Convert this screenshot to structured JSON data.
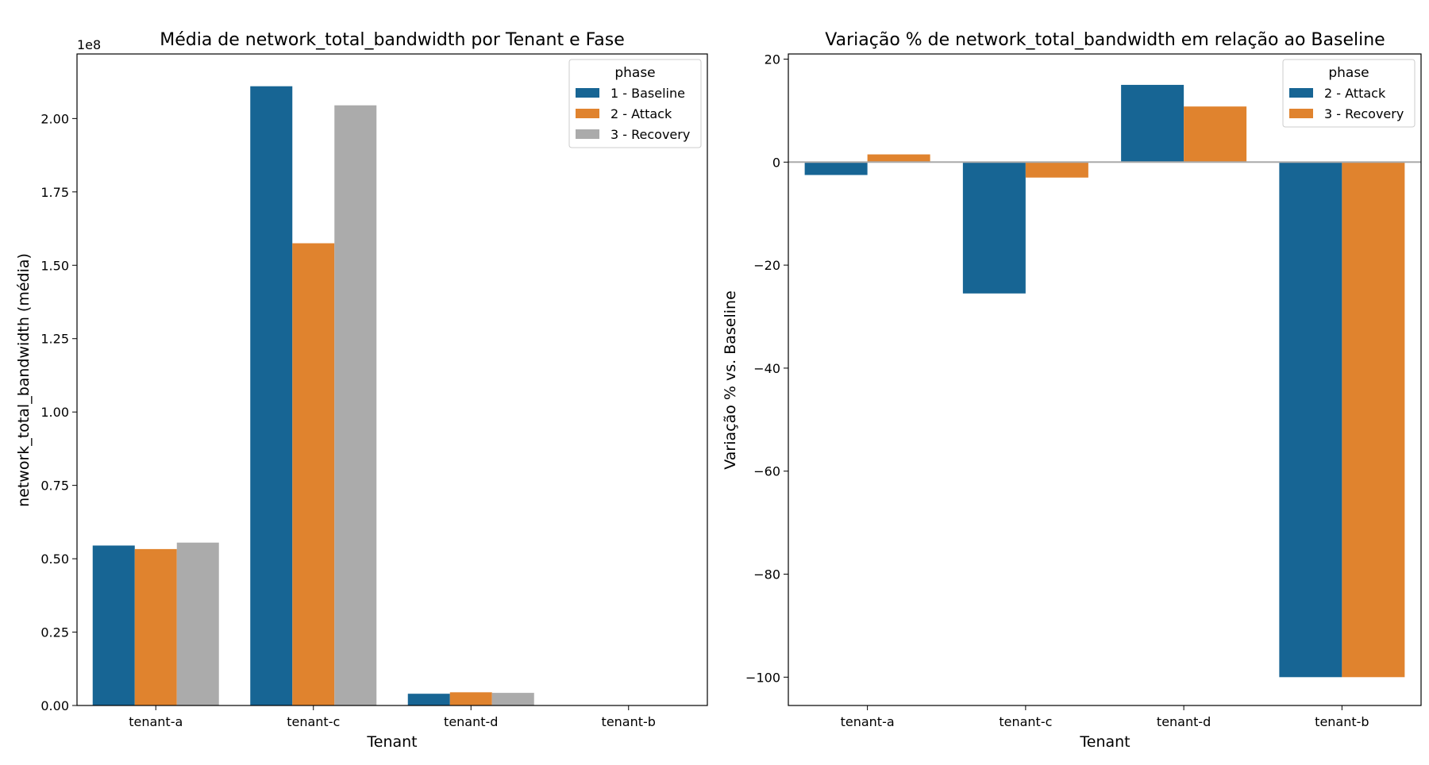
{
  "chart_data": [
    {
      "type": "bar",
      "title": "Média de network_total_bandwidth por Tenant e Fase",
      "xlabel": "Tenant",
      "ylabel": "network_total_bandwidth (média)",
      "y_offset_label": "1e8",
      "categories": [
        "tenant-a",
        "tenant-c",
        "tenant-d",
        "tenant-b"
      ],
      "ylim": [
        0,
        2.22
      ],
      "yticks": [
        "0.00",
        "0.25",
        "0.50",
        "0.75",
        "1.00",
        "1.25",
        "1.50",
        "1.75",
        "2.00"
      ],
      "ytick_values": [
        0,
        0.25,
        0.5,
        0.75,
        1.0,
        1.25,
        1.5,
        1.75,
        2.0
      ],
      "legend": {
        "title": "phase",
        "placement": "top-right"
      },
      "series": [
        {
          "name": "1 - Baseline",
          "color": "#176594",
          "values": [
            0.545,
            2.11,
            0.04,
            0
          ]
        },
        {
          "name": "2 - Attack",
          "color": "#e0832e",
          "values": [
            0.533,
            1.575,
            0.045,
            0
          ]
        },
        {
          "name": "3 - Recovery",
          "color": "#ababab",
          "values": [
            0.555,
            2.045,
            0.043,
            0
          ]
        }
      ]
    },
    {
      "type": "bar",
      "title": "Variação % de network_total_bandwidth em relação ao Baseline",
      "xlabel": "Tenant",
      "ylabel": "Variação % vs. Baseline",
      "categories": [
        "tenant-a",
        "tenant-c",
        "tenant-d",
        "tenant-b"
      ],
      "ylim": [
        -105.5,
        21
      ],
      "yticks": [
        "20",
        "0",
        "−20",
        "−40",
        "−60",
        "−80",
        "−100"
      ],
      "ytick_values": [
        20,
        0,
        -20,
        -40,
        -60,
        -80,
        -100
      ],
      "zero_line": true,
      "legend": {
        "title": "phase",
        "placement": "top-right"
      },
      "series": [
        {
          "name": "2 - Attack",
          "color": "#176594",
          "values": [
            -2.5,
            -25.5,
            15,
            -100
          ]
        },
        {
          "name": "3 - Recovery",
          "color": "#e0832e",
          "values": [
            1.5,
            -3.0,
            10.8,
            -100
          ]
        }
      ]
    }
  ]
}
